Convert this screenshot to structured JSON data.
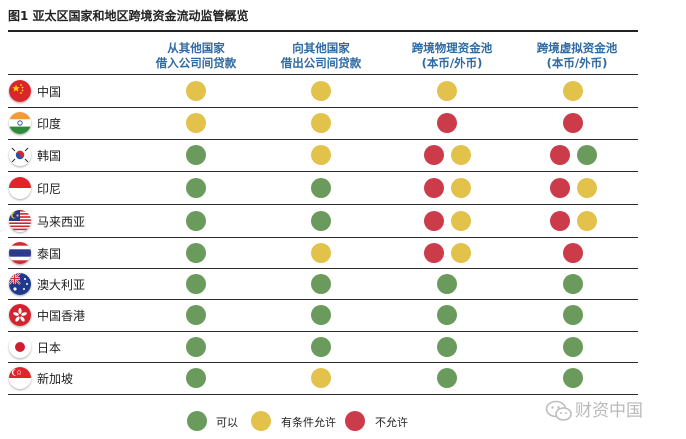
{
  "figure_title": "图1  亚太区国家和地区跨境资金流动监管概览",
  "columns": [
    {
      "line1": "从其他国家",
      "line2": "借入公司间贷款"
    },
    {
      "line1": "向其他国家",
      "line2": "借出公司间贷款"
    },
    {
      "line1": "跨境物理资金池",
      "line2": "(本币/外币)"
    },
    {
      "line1": "跨境虚拟资金池",
      "line2": "(本币/外币)"
    }
  ],
  "rows": [
    {
      "country": "中国",
      "flag": "china-flag-icon",
      "cells": [
        [
          "yellow"
        ],
        [
          "yellow"
        ],
        [
          "yellow"
        ],
        [
          "yellow"
        ]
      ]
    },
    {
      "country": "印度",
      "flag": "india-flag-icon",
      "cells": [
        [
          "yellow"
        ],
        [
          "yellow"
        ],
        [
          "red"
        ],
        [
          "red"
        ]
      ]
    },
    {
      "country": "韩国",
      "flag": "korea-flag-icon",
      "cells": [
        [
          "green"
        ],
        [
          "yellow"
        ],
        [
          "red",
          "yellow"
        ],
        [
          "red",
          "green"
        ]
      ]
    },
    {
      "country": "印尼",
      "flag": "indonesia-flag-icon",
      "cells": [
        [
          "green"
        ],
        [
          "green"
        ],
        [
          "red",
          "yellow"
        ],
        [
          "red",
          "yellow"
        ]
      ]
    },
    {
      "country": "马来西亚",
      "flag": "malaysia-flag-icon",
      "cells": [
        [
          "green"
        ],
        [
          "green"
        ],
        [
          "red",
          "yellow"
        ],
        [
          "red",
          "yellow"
        ]
      ]
    },
    {
      "country": "泰国",
      "flag": "thailand-flag-icon",
      "cells": [
        [
          "green"
        ],
        [
          "yellow"
        ],
        [
          "red",
          "yellow"
        ],
        [
          "red"
        ]
      ]
    },
    {
      "country": "澳大利亚",
      "flag": "australia-flag-icon",
      "cells": [
        [
          "green"
        ],
        [
          "green"
        ],
        [
          "green"
        ],
        [
          "green"
        ]
      ]
    },
    {
      "country": "中国香港",
      "flag": "hongkong-flag-icon",
      "cells": [
        [
          "green"
        ],
        [
          "green"
        ],
        [
          "green"
        ],
        [
          "green"
        ]
      ]
    },
    {
      "country": "日本",
      "flag": "japan-flag-icon",
      "cells": [
        [
          "green"
        ],
        [
          "green"
        ],
        [
          "green"
        ],
        [
          "green"
        ]
      ]
    },
    {
      "country": "新加坡",
      "flag": "singapore-flag-icon",
      "cells": [
        [
          "green"
        ],
        [
          "yellow"
        ],
        [
          "green"
        ],
        [
          "green"
        ]
      ]
    }
  ],
  "legend": [
    {
      "status": "green",
      "label": "可以"
    },
    {
      "status": "yellow",
      "label": "有条件允许"
    },
    {
      "status": "red",
      "label": "不允许"
    }
  ],
  "colors": {
    "green": "#6a9a5c",
    "yellow": "#e3c24c",
    "red": "#cc3b4a",
    "header": "#2f6aa0"
  },
  "watermark": {
    "text": "财资中国",
    "icon": "wechat-icon"
  }
}
